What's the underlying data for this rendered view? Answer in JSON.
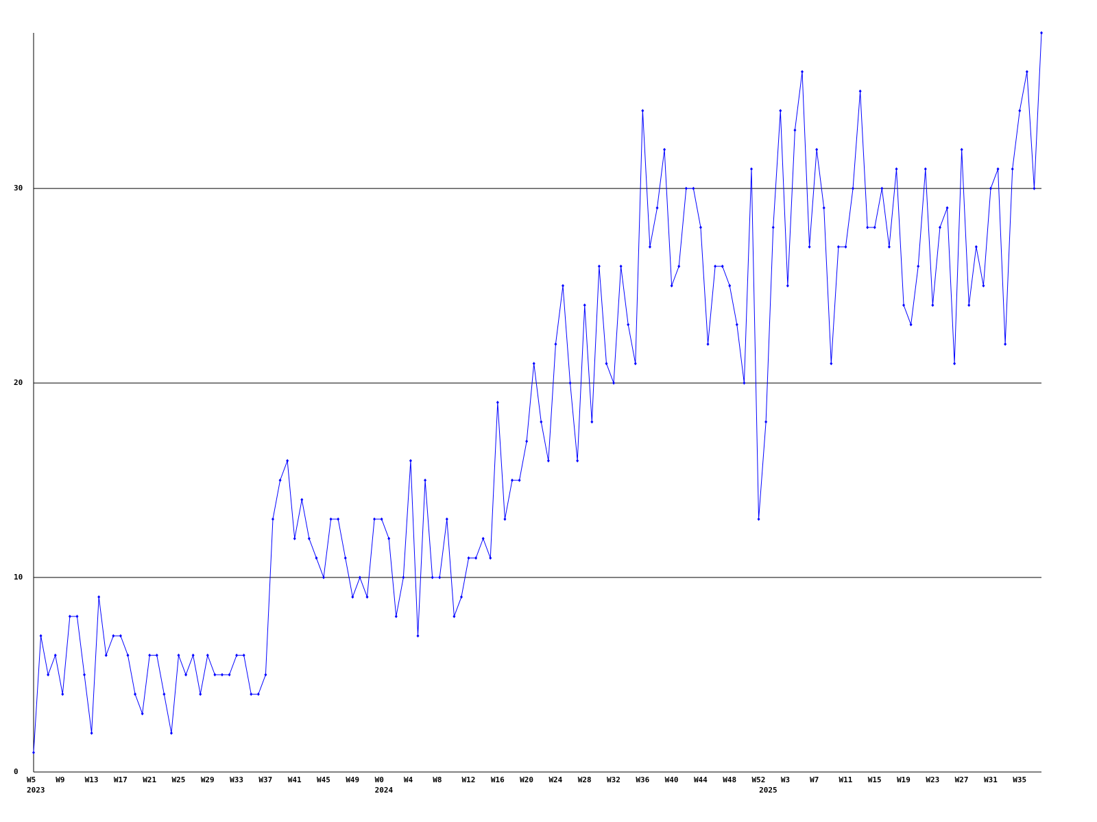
{
  "chart_data": {
    "type": "line",
    "categories": [
      "W5",
      null,
      null,
      null,
      "W9",
      null,
      null,
      null,
      "W13",
      null,
      null,
      null,
      "W17",
      null,
      null,
      null,
      "W21",
      null,
      null,
      null,
      "W25",
      null,
      null,
      null,
      "W29",
      null,
      null,
      null,
      "W33",
      null,
      null,
      null,
      "W37",
      null,
      null,
      null,
      "W41",
      null,
      null,
      null,
      "W45",
      null,
      null,
      null,
      "W49",
      null,
      null,
      null,
      "W0",
      null,
      null,
      null,
      "W4",
      null,
      null,
      null,
      "W8",
      null,
      null,
      null,
      "W12",
      null,
      null,
      null,
      "W16",
      null,
      null,
      null,
      "W20",
      null,
      null,
      null,
      "W24",
      null,
      null,
      null,
      "W28",
      null,
      null,
      null,
      "W32",
      null,
      null,
      null,
      "W36",
      null,
      null,
      null,
      "W40",
      null,
      null,
      null,
      "W44",
      null,
      null,
      null,
      "W48",
      null,
      null,
      null,
      "W52",
      null,
      null,
      null,
      "W3",
      null,
      null,
      null,
      "W7",
      null,
      null,
      null,
      "W11",
      null,
      null,
      null,
      "W15",
      null,
      null,
      null,
      "W19",
      null,
      null,
      null,
      "W23",
      null,
      null,
      null,
      "W27",
      null,
      null,
      null,
      "W31",
      null,
      null,
      null,
      "W35",
      null,
      null,
      null
    ],
    "year_categories": [
      "2023",
      null,
      null,
      null,
      null,
      null,
      null,
      null,
      null,
      null,
      null,
      null,
      null,
      null,
      null,
      null,
      null,
      null,
      null,
      null,
      null,
      null,
      null,
      null,
      null,
      null,
      null,
      null,
      null,
      null,
      null,
      null,
      null,
      null,
      null,
      null,
      null,
      null,
      null,
      null,
      null,
      null,
      null,
      null,
      null,
      null,
      null,
      null,
      "2024",
      null,
      null,
      null,
      null,
      null,
      null,
      null,
      null,
      null,
      null,
      null,
      null,
      null,
      null,
      null,
      null,
      null,
      null,
      null,
      null,
      null,
      null,
      null,
      null,
      null,
      null,
      null,
      null,
      null,
      null,
      null,
      null,
      null,
      null,
      null,
      null,
      null,
      null,
      null,
      null,
      null,
      null,
      null,
      null,
      null,
      null,
      null,
      null,
      null,
      null,
      null,
      null,
      "2025",
      null,
      null,
      null,
      null,
      null,
      null,
      null,
      null,
      null,
      null,
      null,
      null,
      null,
      null,
      null,
      null,
      null,
      null,
      null,
      null,
      null,
      null,
      null,
      null,
      null,
      null,
      null,
      null,
      null,
      null,
      null,
      null,
      null,
      null,
      null,
      null,
      null,
      null
    ],
    "values": [
      1,
      7,
      5,
      6,
      4,
      8,
      8,
      5,
      2,
      9,
      6,
      7,
      7,
      6,
      4,
      3,
      6,
      6,
      4,
      2,
      6,
      5,
      6,
      4,
      6,
      5,
      5,
      5,
      6,
      6,
      4,
      4,
      5,
      13,
      15,
      16,
      12,
      14,
      12,
      11,
      10,
      13,
      13,
      11,
      9,
      10,
      9,
      13,
      13,
      12,
      8,
      10,
      16,
      7,
      15,
      10,
      10,
      13,
      8,
      9,
      11,
      11,
      12,
      11,
      19,
      13,
      15,
      15,
      17,
      21,
      18,
      16,
      22,
      25,
      20,
      16,
      24,
      18,
      26,
      21,
      20,
      26,
      23,
      21,
      34,
      27,
      29,
      32,
      25,
      26,
      30,
      30,
      28,
      22,
      26,
      26,
      25,
      23,
      20,
      31,
      13,
      18,
      28,
      34,
      25,
      33,
      36,
      27,
      32,
      29,
      21,
      27,
      27,
      30,
      35,
      28,
      28,
      30,
      27,
      31,
      24,
      23,
      26,
      31,
      24,
      28,
      29,
      21,
      32,
      24,
      27,
      25,
      30,
      31,
      22,
      31,
      34,
      36,
      30,
      38
    ],
    "color": "#0000ff",
    "ylim": [
      0,
      38
    ],
    "yticks": [
      0,
      10,
      20,
      30
    ],
    "grid": true
  }
}
